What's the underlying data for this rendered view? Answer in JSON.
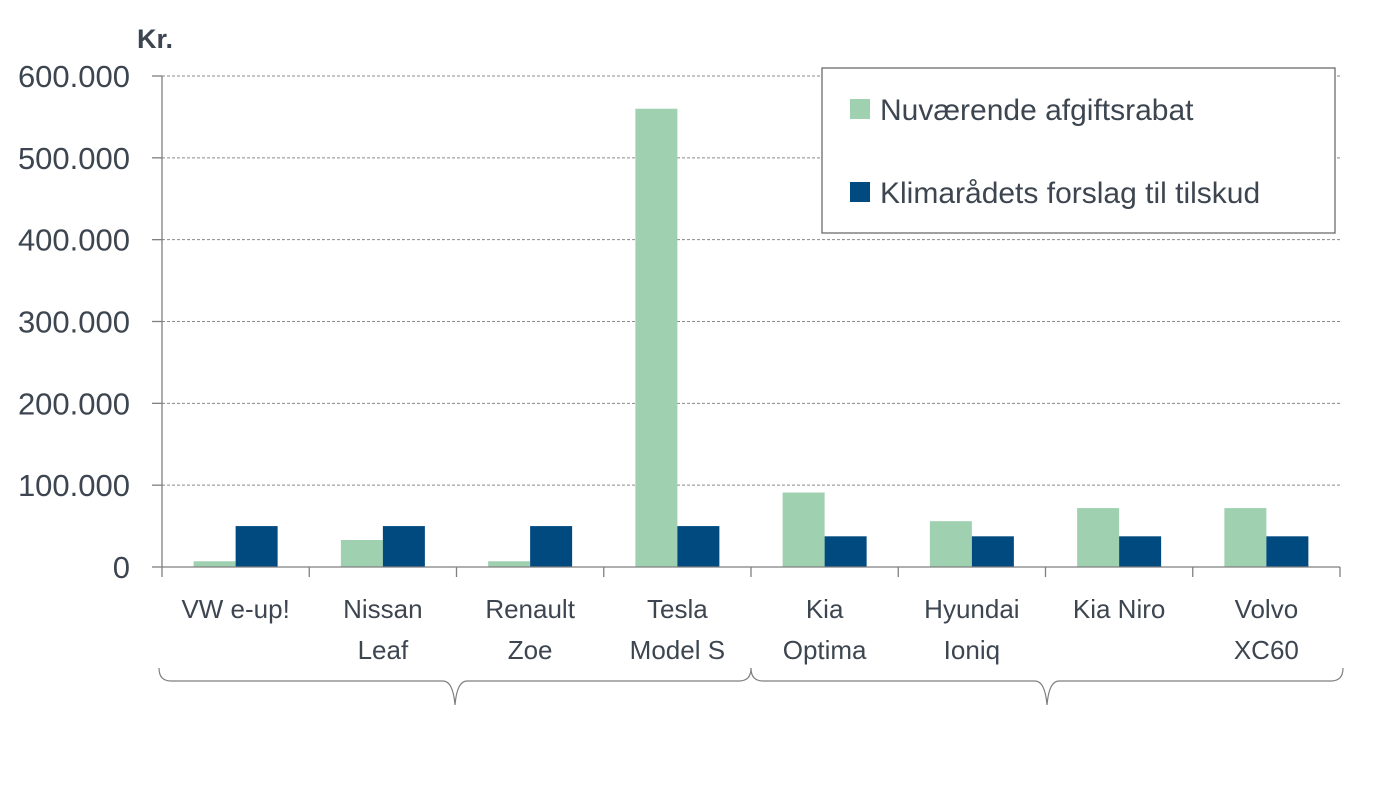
{
  "chart_data": {
    "type": "bar",
    "unit_label": "Kr.",
    "categories": [
      [
        "VW e-up!"
      ],
      [
        "Nissan",
        "Leaf"
      ],
      [
        "Renault",
        "Zoe"
      ],
      [
        "Tesla",
        "Model S"
      ],
      [
        "Kia",
        "Optima"
      ],
      [
        "Hyundai",
        "Ioniq"
      ],
      [
        "Kia Niro"
      ],
      [
        "Volvo",
        "XC60"
      ]
    ],
    "series": [
      {
        "name": "Nuværende afgiftsrabat",
        "color": "#9fd0b0",
        "values": [
          7000,
          33000,
          7000,
          560000,
          91000,
          56000,
          72000,
          72000
        ]
      },
      {
        "name": "Klimarådets forslag til tilskud",
        "color": "#004a80",
        "values": [
          50000,
          50000,
          50000,
          50000,
          37500,
          37500,
          37500,
          37500
        ]
      }
    ],
    "ylim": [
      0,
      600000
    ],
    "yticks": [
      "0",
      "100.000",
      "200.000",
      "300.000",
      "400.000",
      "500.000",
      "600.000"
    ],
    "grid": true,
    "legend_position": "top-right",
    "category_groups": 2
  }
}
